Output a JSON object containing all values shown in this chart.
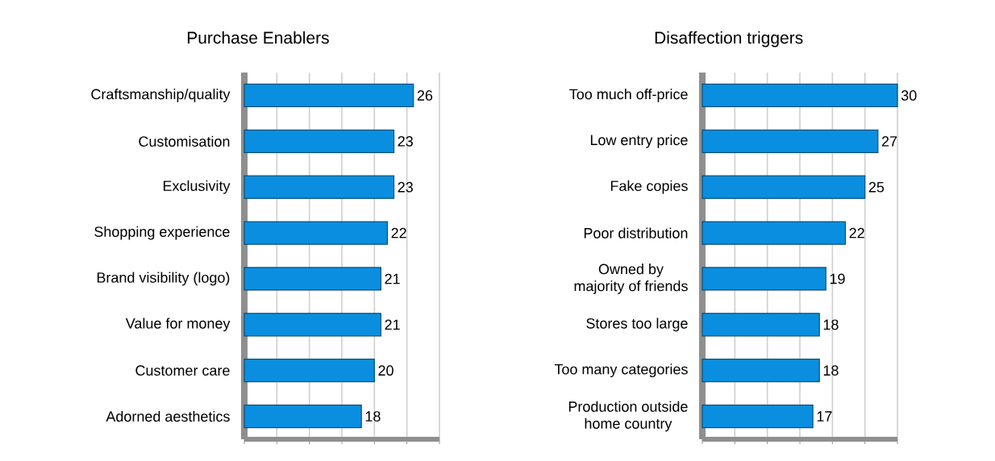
{
  "chart_data": [
    {
      "type": "bar",
      "orientation": "horizontal",
      "title": "Purchase Enablers",
      "categories": [
        "Craftsmanship/quality",
        "Customisation",
        "Exclusivity",
        "Shopping experience",
        "Brand visibility (logo)",
        "Value for money",
        "Customer care",
        "Adorned aesthetics"
      ],
      "values": [
        26,
        23,
        23,
        22,
        21,
        21,
        20,
        18
      ],
      "color": "#0a8fe0",
      "data_labels": true,
      "xlim": [
        0,
        30
      ],
      "xticks": [
        {
          "value": 0,
          "label": null
        },
        {
          "value": 5,
          "label": null
        },
        {
          "value": 10,
          "label": null
        },
        {
          "value": 15,
          "label": null
        },
        {
          "value": 20,
          "label": null
        },
        {
          "value": 25,
          "label": null
        },
        {
          "value": 30,
          "label": null
        }
      ],
      "grid": "x",
      "tick_labels": "y"
    },
    {
      "type": "bar",
      "orientation": "horizontal",
      "title": "Disaffection triggers",
      "categories": [
        "Too much off-price",
        "Low entry price",
        "Fake copies",
        "Poor distribution",
        "Owned by\nmajority of friends",
        "Stores too large",
        "Too many categories",
        "Production outside\nhome country"
      ],
      "values": [
        30,
        27,
        25,
        22,
        19,
        18,
        18,
        17
      ],
      "color": "#0a8fe0",
      "data_labels": true,
      "xlim": [
        0,
        30
      ],
      "xticks": [
        {
          "value": 0,
          "label": null
        },
        {
          "value": 5,
          "label": null
        },
        {
          "value": 10,
          "label": null
        },
        {
          "value": 15,
          "label": null
        },
        {
          "value": 20,
          "label": null
        },
        {
          "value": 25,
          "label": null
        },
        {
          "value": 30,
          "label": null
        }
      ],
      "grid": "x",
      "tick_labels": "y"
    }
  ]
}
